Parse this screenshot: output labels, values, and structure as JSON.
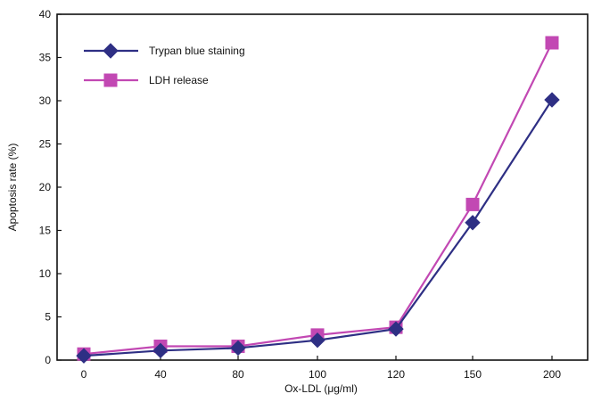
{
  "chart_data": {
    "type": "line",
    "categories": [
      "0",
      "40",
      "80",
      "100",
      "120",
      "150",
      "200"
    ],
    "series": [
      {
        "name": "Trypan blue staining",
        "values": [
          0.5,
          1.1,
          1.4,
          2.3,
          3.6,
          15.9,
          30.1
        ],
        "color": "#2e2f84",
        "marker": "diamond"
      },
      {
        "name": "LDH release",
        "values": [
          0.7,
          1.6,
          1.6,
          2.9,
          3.8,
          18.0,
          36.7
        ],
        "color": "#c248b3",
        "marker": "square"
      }
    ],
    "title": "",
    "xlabel": "Ox-LDL (μg/ml)",
    "ylabel": "Apoptosis rate  (%)",
    "ylim": [
      0,
      40
    ],
    "yticks": [
      "0",
      "5",
      "10",
      "15",
      "20",
      "25",
      "30",
      "35",
      "40"
    ],
    "grid": false,
    "legend_position": "top-left"
  }
}
